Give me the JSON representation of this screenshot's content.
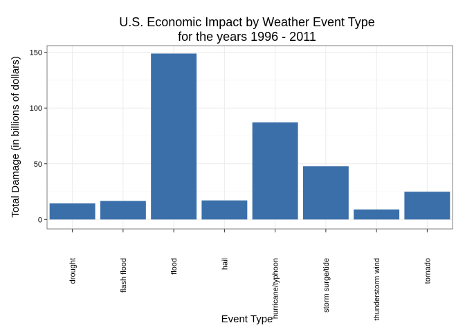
{
  "chart_data": {
    "type": "bar",
    "title": "U.S. Economic Impact by Weather Event Type",
    "subtitle": "for the years 1996 - 2011",
    "xlabel": "Event Type",
    "ylabel": "Total Damage (in billions of dollars)",
    "categories": [
      "drought",
      "flash flood",
      "flood",
      "hail",
      "hurricane/typhoon",
      "storm surge/tide",
      "thunderstorm wind",
      "tornado"
    ],
    "values": [
      14.4,
      16.6,
      148.9,
      17.1,
      87.1,
      47.8,
      9.0,
      24.9
    ],
    "ylim": [
      -8.5,
      156
    ],
    "yticks": [
      0,
      50,
      100,
      150
    ],
    "grid": true,
    "legend": "none",
    "bar_color": "#3a6fa9"
  }
}
